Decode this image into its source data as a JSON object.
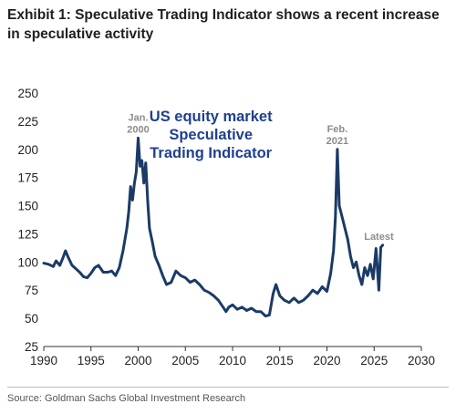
{
  "title": "Exhibit 1: Speculative Trading Indicator shows a recent increase in speculative activity",
  "source": "Source: Goldman Sachs Global Investment Research",
  "colors": {
    "line": "#1b3a67",
    "inner_title": "#1f3f8f",
    "annotation": "#8c8c8c"
  },
  "chart_data": {
    "type": "line",
    "inner_title": [
      "US equity market",
      "Speculative",
      "Trading Indicator"
    ],
    "xlim": [
      1990,
      2030
    ],
    "ylim": [
      25,
      250
    ],
    "x_ticks": [
      1990,
      1995,
      2000,
      2005,
      2010,
      2015,
      2020,
      2025,
      2030
    ],
    "y_ticks": [
      25,
      50,
      75,
      100,
      125,
      150,
      175,
      200,
      225,
      250
    ],
    "grid": false,
    "annotations": [
      {
        "lines": [
          "Jan.",
          "2000"
        ],
        "x": 2000.0,
        "y": 210
      },
      {
        "lines": [
          "Feb.",
          "2021"
        ],
        "x": 2021.1,
        "y": 200
      },
      {
        "lines": [
          "Latest"
        ],
        "x": 2025.5,
        "y": 115
      }
    ],
    "series": [
      {
        "values": [
          [
            1990.0,
            99
          ],
          [
            1990.5,
            98
          ],
          [
            1991.0,
            96
          ],
          [
            1991.3,
            101
          ],
          [
            1991.7,
            97
          ],
          [
            1992.0,
            103
          ],
          [
            1992.3,
            110
          ],
          [
            1992.6,
            104
          ],
          [
            1993.0,
            97
          ],
          [
            1993.4,
            94
          ],
          [
            1993.8,
            91
          ],
          [
            1994.2,
            87
          ],
          [
            1994.6,
            86
          ],
          [
            1995.0,
            90
          ],
          [
            1995.4,
            95
          ],
          [
            1995.8,
            97
          ],
          [
            1996.3,
            91
          ],
          [
            1996.8,
            91
          ],
          [
            1997.2,
            92
          ],
          [
            1997.6,
            88
          ],
          [
            1998.0,
            95
          ],
          [
            1998.4,
            110
          ],
          [
            1998.8,
            130
          ],
          [
            1999.0,
            145
          ],
          [
            1999.2,
            167
          ],
          [
            1999.4,
            155
          ],
          [
            1999.6,
            170
          ],
          [
            1999.8,
            180
          ],
          [
            2000.0,
            210
          ],
          [
            2000.2,
            185
          ],
          [
            2000.4,
            190
          ],
          [
            2000.6,
            170
          ],
          [
            2000.8,
            188
          ],
          [
            2001.0,
            155
          ],
          [
            2001.2,
            130
          ],
          [
            2001.5,
            118
          ],
          [
            2001.8,
            105
          ],
          [
            2002.2,
            97
          ],
          [
            2002.6,
            88
          ],
          [
            2003.0,
            80
          ],
          [
            2003.5,
            82
          ],
          [
            2004.0,
            92
          ],
          [
            2004.5,
            88
          ],
          [
            2005.0,
            86
          ],
          [
            2005.5,
            82
          ],
          [
            2006.0,
            84
          ],
          [
            2006.5,
            80
          ],
          [
            2007.0,
            75
          ],
          [
            2007.5,
            73
          ],
          [
            2008.0,
            70
          ],
          [
            2008.5,
            66
          ],
          [
            2009.0,
            60
          ],
          [
            2009.3,
            56
          ],
          [
            2009.6,
            60
          ],
          [
            2010.0,
            62
          ],
          [
            2010.5,
            58
          ],
          [
            2011.0,
            60
          ],
          [
            2011.5,
            57
          ],
          [
            2012.0,
            59
          ],
          [
            2012.5,
            56
          ],
          [
            2013.0,
            56
          ],
          [
            2013.5,
            52
          ],
          [
            2013.9,
            53
          ],
          [
            2014.3,
            72
          ],
          [
            2014.6,
            80
          ],
          [
            2015.0,
            70
          ],
          [
            2015.5,
            66
          ],
          [
            2016.0,
            64
          ],
          [
            2016.5,
            68
          ],
          [
            2017.0,
            64
          ],
          [
            2017.5,
            66
          ],
          [
            2018.0,
            70
          ],
          [
            2018.5,
            75
          ],
          [
            2019.0,
            72
          ],
          [
            2019.5,
            78
          ],
          [
            2020.0,
            74
          ],
          [
            2020.4,
            90
          ],
          [
            2020.7,
            110
          ],
          [
            2020.9,
            140
          ],
          [
            2021.1,
            200
          ],
          [
            2021.3,
            150
          ],
          [
            2021.6,
            140
          ],
          [
            2021.9,
            130
          ],
          [
            2022.2,
            120
          ],
          [
            2022.5,
            105
          ],
          [
            2022.8,
            95
          ],
          [
            2023.1,
            100
          ],
          [
            2023.4,
            88
          ],
          [
            2023.7,
            80
          ],
          [
            2024.0,
            95
          ],
          [
            2024.3,
            88
          ],
          [
            2024.6,
            98
          ],
          [
            2024.9,
            85
          ],
          [
            2025.2,
            112
          ],
          [
            2025.5,
            75
          ],
          [
            2025.7,
            113
          ],
          [
            2025.9,
            115
          ]
        ]
      }
    ]
  }
}
